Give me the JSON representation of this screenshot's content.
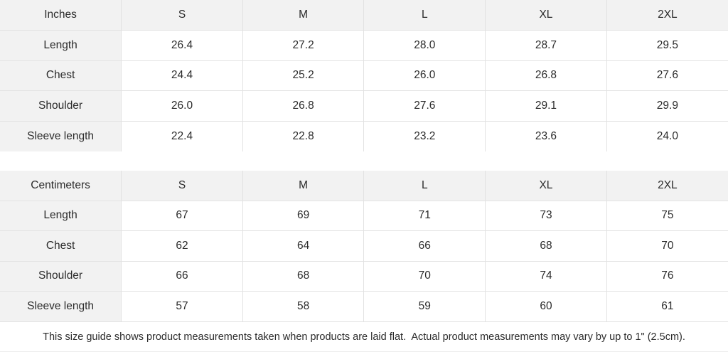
{
  "colors": {
    "header_bg": "#f2f2f2",
    "cell_bg": "#ffffff",
    "border": "#e2e2e2",
    "text": "#2b2b2b"
  },
  "tables": [
    {
      "unit_label": "Inches",
      "columns": [
        "S",
        "M",
        "L",
        "XL",
        "2XL"
      ],
      "rows": [
        {
          "label": "Length",
          "values": [
            "26.4",
            "27.2",
            "28.0",
            "28.7",
            "29.5"
          ]
        },
        {
          "label": "Chest",
          "values": [
            "24.4",
            "25.2",
            "26.0",
            "26.8",
            "27.6"
          ]
        },
        {
          "label": "Shoulder",
          "values": [
            "26.0",
            "26.8",
            "27.6",
            "29.1",
            "29.9"
          ]
        },
        {
          "label": "Sleeve length",
          "values": [
            "22.4",
            "22.8",
            "23.2",
            "23.6",
            "24.0"
          ]
        }
      ]
    },
    {
      "unit_label": "Centimeters",
      "columns": [
        "S",
        "M",
        "L",
        "XL",
        "2XL"
      ],
      "rows": [
        {
          "label": "Length",
          "values": [
            "67",
            "69",
            "71",
            "73",
            "75"
          ]
        },
        {
          "label": "Chest",
          "values": [
            "62",
            "64",
            "66",
            "68",
            "70"
          ]
        },
        {
          "label": "Shoulder",
          "values": [
            "66",
            "68",
            "70",
            "74",
            "76"
          ]
        },
        {
          "label": "Sleeve length",
          "values": [
            "57",
            "58",
            "59",
            "60",
            "61"
          ]
        }
      ]
    }
  ],
  "footer": {
    "note": "This size guide shows product measurements taken when products are laid flat.  Actual product measurements may vary by up to 1\" (2.5cm)."
  }
}
